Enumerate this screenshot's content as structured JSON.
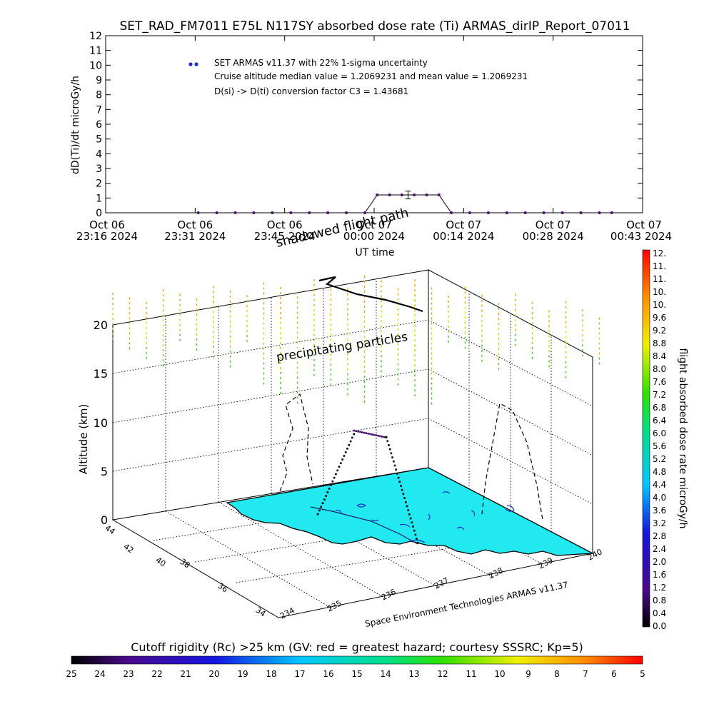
{
  "figure": {
    "title": "SET_RAD_FM7011  E75L N117SY absorbed dose rate (Ti) ARMAS_dirIP_Report_07011",
    "credit": "Space Environment Technologies ARMAS v11.37"
  },
  "chart_data": [
    {
      "type": "line",
      "panel": "dose-rate-timeseries",
      "ylabel": "dD(Ti)/dt microGy/h",
      "xlabel": "UT time",
      "ylim": [
        0,
        12
      ],
      "yticks": [
        "0",
        "1",
        "2",
        "3",
        "4",
        "5",
        "6",
        "7",
        "8",
        "9",
        "10",
        "11",
        "12"
      ],
      "xticks": [
        {
          "date": "Oct 06",
          "time": "23:16 2024"
        },
        {
          "date": "Oct 06",
          "time": "23:31 2024"
        },
        {
          "date": "Oct 06",
          "time": "23:45 2024"
        },
        {
          "date": "Oct 07",
          "time": "00:00 2024"
        },
        {
          "date": "Oct 07",
          "time": "00:14 2024"
        },
        {
          "date": "Oct 07",
          "time": "00:28 2024"
        },
        {
          "date": "Oct 07",
          "time": "00:43 2024"
        }
      ],
      "legend": {
        "marker_color": "#1a2fd0",
        "lines": [
          "SET ARMAS v11.37 with 22% 1-sigma uncertainty",
          "Cruise altitude median value = 1.2069231 and mean value = 1.2069231",
          "D(si) -> D(ti) conversion factor C3 = 1.43681"
        ]
      },
      "x_start": "2024-10-06 23:16",
      "x_end": "2024-10-07 00:43",
      "series": [
        {
          "color": "#4b0f6e",
          "points": [
            [
              "2024-10-06 23:31",
              0
            ],
            [
              "2024-10-06 23:34",
              0
            ],
            [
              "2024-10-06 23:37",
              0
            ],
            [
              "2024-10-06 23:40",
              0
            ],
            [
              "2024-10-06 23:43",
              0
            ],
            [
              "2024-10-06 23:46",
              0
            ],
            [
              "2024-10-06 23:49",
              0
            ],
            [
              "2024-10-06 23:52",
              0
            ],
            [
              "2024-10-06 23:55",
              0
            ],
            [
              "2024-10-06 23:58",
              0
            ],
            [
              "2024-10-07 00:00",
              1.21
            ],
            [
              "2024-10-07 00:02",
              1.21
            ],
            [
              "2024-10-07 00:04",
              1.21
            ],
            [
              "2024-10-07 00:06",
              1.21
            ],
            [
              "2024-10-07 00:08",
              1.21
            ],
            [
              "2024-10-07 00:10",
              1.21
            ],
            [
              "2024-10-07 00:12",
              0
            ],
            [
              "2024-10-07 00:15",
              0
            ],
            [
              "2024-10-07 00:18",
              0
            ],
            [
              "2024-10-07 00:21",
              0
            ],
            [
              "2024-10-07 00:24",
              0
            ],
            [
              "2024-10-07 00:27",
              0
            ],
            [
              "2024-10-07 00:30",
              0
            ],
            [
              "2024-10-07 00:33",
              0
            ],
            [
              "2024-10-07 00:36",
              0
            ],
            [
              "2024-10-07 00:38",
              0
            ]
          ],
          "error_bar": {
            "x": "2024-10-07 00:05",
            "y": 1.21,
            "low": 0.94,
            "high": 1.47
          }
        }
      ]
    },
    {
      "type": "scatter",
      "panel": "3d-flight-view",
      "zlabel": "Altitude (km)",
      "zticks": [
        "0",
        "5",
        "10",
        "15",
        "20"
      ],
      "lat_ticks": [
        "34",
        "36",
        "38",
        "40",
        "42",
        "44"
      ],
      "lon_ticks": [
        "234",
        "235",
        "236",
        "237",
        "238",
        "239",
        "240"
      ],
      "annotations": [
        "shadowed flight path",
        "precipitating particles"
      ],
      "colorbar": {
        "label": "flight absorbed dose rate microGy/h",
        "ticks": [
          "0.0",
          "0.4",
          "0.8",
          "1.2",
          "1.6",
          "2.0",
          "2.4",
          "2.8",
          "3.2",
          "3.6",
          "4.0",
          "4.4",
          "4.8",
          "5.2",
          "5.6",
          "6.0",
          "6.4",
          "6.8",
          "7.2",
          "7.6",
          "8.0",
          "8.4",
          "8.8",
          "9.2",
          "9.6",
          "10.",
          "10.",
          "11.",
          "11.",
          "12."
        ]
      }
    },
    {
      "type": "heatmap",
      "panel": "cutoff-rigidity-colorbar",
      "title": "Cutoff rigidity (Rc) >25 km (GV: red = greatest hazard; courtesy SSSRC; Kp=5)",
      "ticks": [
        "25",
        "24",
        "23",
        "22",
        "21",
        "20",
        "19",
        "18",
        "17",
        "16",
        "15",
        "14",
        "13",
        "12",
        "11",
        "10",
        "9",
        "8",
        "7",
        "6",
        "5"
      ]
    }
  ]
}
